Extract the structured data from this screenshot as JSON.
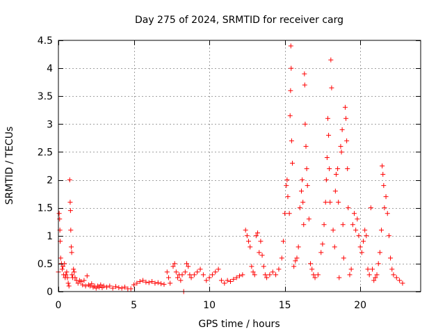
{
  "chart_data": {
    "type": "scatter",
    "title": "Day 275 of 2024, SRMTID for receiver carg",
    "xlabel": "GPS time / hours",
    "ylabel": "SRMTID / TECUs",
    "xlim": [
      0,
      24
    ],
    "ylim": [
      0,
      4.5
    ],
    "grid": true,
    "marker": "+",
    "x_ticks": [
      0,
      5,
      10,
      15,
      20
    ],
    "x_tick_labels": [
      "0",
      "5",
      "10",
      "15",
      "20"
    ],
    "y_ticks": [
      0,
      0.5,
      1,
      1.5,
      2,
      2.5,
      3,
      3.5,
      4,
      4.5
    ],
    "y_tick_labels": [
      "0",
      "0.5",
      "1",
      "1.5",
      "2",
      "2.5",
      "3",
      "3.5",
      "4",
      "4.5"
    ],
    "series": [
      {
        "name": "SRMTID",
        "color": "#ff0000",
        "points": [
          [
            0.0,
            0.35
          ],
          [
            0.05,
            1.4
          ],
          [
            0.08,
            1.3
          ],
          [
            0.1,
            1.1
          ],
          [
            0.12,
            0.9
          ],
          [
            0.15,
            0.6
          ],
          [
            0.2,
            0.5
          ],
          [
            0.25,
            0.4
          ],
          [
            0.3,
            0.45
          ],
          [
            0.35,
            0.3
          ],
          [
            0.4,
            0.5
          ],
          [
            0.45,
            0.25
          ],
          [
            0.5,
            0.3
          ],
          [
            0.55,
            0.35
          ],
          [
            0.6,
            0.25
          ],
          [
            0.65,
            0.15
          ],
          [
            0.7,
            0.1
          ],
          [
            0.75,
            2.0
          ],
          [
            0.78,
            1.6
          ],
          [
            0.8,
            1.45
          ],
          [
            0.82,
            1.1
          ],
          [
            0.85,
            0.8
          ],
          [
            0.88,
            0.7
          ],
          [
            0.9,
            0.3
          ],
          [
            0.95,
            0.25
          ],
          [
            1.0,
            0.4
          ],
          [
            1.05,
            0.35
          ],
          [
            1.1,
            0.25
          ],
          [
            1.2,
            0.2
          ],
          [
            1.3,
            0.15
          ],
          [
            1.4,
            0.2
          ],
          [
            1.5,
            0.18
          ],
          [
            1.6,
            0.12
          ],
          [
            1.7,
            0.2
          ],
          [
            1.8,
            0.1
          ],
          [
            1.9,
            0.28
          ],
          [
            2.0,
            0.12
          ],
          [
            2.1,
            0.1
          ],
          [
            2.2,
            0.14
          ],
          [
            2.3,
            0.08
          ],
          [
            2.4,
            0.1
          ],
          [
            2.5,
            0.06
          ],
          [
            2.6,
            0.1
          ],
          [
            2.7,
            0.08
          ],
          [
            2.8,
            0.12
          ],
          [
            2.9,
            0.07
          ],
          [
            3.0,
            0.1
          ],
          [
            3.2,
            0.08
          ],
          [
            3.4,
            0.1
          ],
          [
            3.6,
            0.06
          ],
          [
            3.8,
            0.09
          ],
          [
            4.0,
            0.07
          ],
          [
            4.2,
            0.06
          ],
          [
            4.4,
            0.08
          ],
          [
            4.6,
            0.05
          ],
          [
            4.8,
            0.05
          ],
          [
            5.0,
            0.12
          ],
          [
            5.2,
            0.15
          ],
          [
            5.4,
            0.18
          ],
          [
            5.6,
            0.2
          ],
          [
            5.8,
            0.17
          ],
          [
            6.0,
            0.16
          ],
          [
            6.2,
            0.18
          ],
          [
            6.4,
            0.15
          ],
          [
            6.6,
            0.16
          ],
          [
            6.8,
            0.14
          ],
          [
            7.0,
            0.13
          ],
          [
            7.2,
            0.35
          ],
          [
            7.3,
            0.25
          ],
          [
            7.4,
            0.15
          ],
          [
            7.6,
            0.45
          ],
          [
            7.7,
            0.5
          ],
          [
            7.8,
            0.35
          ],
          [
            7.9,
            0.25
          ],
          [
            8.0,
            0.3
          ],
          [
            8.1,
            0.2
          ],
          [
            8.2,
            0.3
          ],
          [
            8.3,
            0.0
          ],
          [
            8.4,
            0.35
          ],
          [
            8.5,
            0.5
          ],
          [
            8.6,
            0.45
          ],
          [
            8.7,
            0.3
          ],
          [
            8.8,
            0.25
          ],
          [
            9.0,
            0.3
          ],
          [
            9.2,
            0.35
          ],
          [
            9.4,
            0.4
          ],
          [
            9.6,
            0.3
          ],
          [
            9.8,
            0.2
          ],
          [
            10.0,
            0.25
          ],
          [
            10.2,
            0.3
          ],
          [
            10.4,
            0.35
          ],
          [
            10.6,
            0.4
          ],
          [
            10.8,
            0.2
          ],
          [
            11.0,
            0.15
          ],
          [
            11.2,
            0.2
          ],
          [
            11.4,
            0.18
          ],
          [
            11.6,
            0.22
          ],
          [
            11.8,
            0.25
          ],
          [
            12.0,
            0.28
          ],
          [
            12.2,
            0.3
          ],
          [
            12.4,
            1.1
          ],
          [
            12.5,
            1.0
          ],
          [
            12.6,
            0.9
          ],
          [
            12.7,
            0.8
          ],
          [
            12.8,
            0.45
          ],
          [
            12.9,
            0.35
          ],
          [
            13.0,
            0.3
          ],
          [
            13.1,
            1.0
          ],
          [
            13.2,
            1.05
          ],
          [
            13.3,
            0.7
          ],
          [
            13.4,
            0.9
          ],
          [
            13.5,
            0.65
          ],
          [
            13.6,
            0.45
          ],
          [
            13.7,
            0.3
          ],
          [
            13.8,
            0.25
          ],
          [
            14.0,
            0.3
          ],
          [
            14.2,
            0.35
          ],
          [
            14.4,
            0.3
          ],
          [
            14.6,
            0.4
          ],
          [
            14.8,
            0.6
          ],
          [
            14.9,
            0.9
          ],
          [
            15.0,
            1.4
          ],
          [
            15.1,
            1.9
          ],
          [
            15.15,
            2.0
          ],
          [
            15.2,
            1.7
          ],
          [
            15.3,
            1.4
          ],
          [
            15.35,
            3.15
          ],
          [
            15.38,
            3.6
          ],
          [
            15.4,
            4.4
          ],
          [
            15.42,
            4.0
          ],
          [
            15.45,
            2.7
          ],
          [
            15.5,
            2.3
          ],
          [
            15.6,
            0.45
          ],
          [
            15.7,
            0.55
          ],
          [
            15.8,
            0.6
          ],
          [
            15.9,
            0.8
          ],
          [
            16.0,
            1.5
          ],
          [
            16.1,
            1.8
          ],
          [
            16.15,
            2.0
          ],
          [
            16.2,
            1.6
          ],
          [
            16.25,
            1.2
          ],
          [
            16.3,
            3.9
          ],
          [
            16.32,
            3.7
          ],
          [
            16.35,
            3.0
          ],
          [
            16.4,
            2.6
          ],
          [
            16.45,
            2.2
          ],
          [
            16.5,
            1.9
          ],
          [
            16.6,
            1.3
          ],
          [
            16.7,
            0.5
          ],
          [
            16.8,
            0.4
          ],
          [
            16.9,
            0.3
          ],
          [
            17.0,
            0.25
          ],
          [
            17.2,
            0.3
          ],
          [
            17.4,
            0.7
          ],
          [
            17.5,
            0.85
          ],
          [
            17.6,
            1.2
          ],
          [
            17.7,
            1.6
          ],
          [
            17.75,
            2.0
          ],
          [
            17.8,
            2.4
          ],
          [
            17.85,
            3.1
          ],
          [
            17.9,
            2.8
          ],
          [
            17.95,
            2.2
          ],
          [
            18.0,
            1.6
          ],
          [
            18.05,
            4.15
          ],
          [
            18.1,
            3.65
          ],
          [
            18.2,
            1.1
          ],
          [
            18.3,
            0.8
          ],
          [
            18.35,
            1.8
          ],
          [
            18.4,
            2.1
          ],
          [
            18.5,
            2.2
          ],
          [
            18.55,
            1.6
          ],
          [
            18.6,
            0.25
          ],
          [
            18.7,
            2.6
          ],
          [
            18.75,
            2.5
          ],
          [
            18.8,
            2.9
          ],
          [
            18.85,
            1.2
          ],
          [
            18.9,
            0.6
          ],
          [
            19.0,
            3.3
          ],
          [
            19.05,
            3.1
          ],
          [
            19.1,
            2.7
          ],
          [
            19.15,
            2.2
          ],
          [
            19.2,
            1.5
          ],
          [
            19.3,
            0.3
          ],
          [
            19.4,
            0.4
          ],
          [
            19.5,
            1.2
          ],
          [
            19.6,
            1.4
          ],
          [
            19.7,
            1.1
          ],
          [
            19.8,
            1.3
          ],
          [
            19.9,
            1.0
          ],
          [
            20.0,
            0.8
          ],
          [
            20.1,
            0.7
          ],
          [
            20.2,
            0.9
          ],
          [
            20.3,
            1.1
          ],
          [
            20.4,
            1.0
          ],
          [
            20.5,
            0.4
          ],
          [
            20.6,
            0.3
          ],
          [
            20.7,
            1.5
          ],
          [
            20.8,
            0.4
          ],
          [
            20.9,
            0.2
          ],
          [
            21.0,
            0.25
          ],
          [
            21.1,
            0.3
          ],
          [
            21.2,
            0.5
          ],
          [
            21.3,
            0.7
          ],
          [
            21.4,
            1.1
          ],
          [
            21.45,
            2.25
          ],
          [
            21.5,
            2.1
          ],
          [
            21.55,
            1.9
          ],
          [
            21.6,
            1.5
          ],
          [
            21.7,
            1.7
          ],
          [
            21.8,
            1.4
          ],
          [
            21.9,
            1.0
          ],
          [
            22.0,
            0.6
          ],
          [
            22.1,
            0.4
          ],
          [
            22.2,
            0.3
          ],
          [
            22.4,
            0.25
          ],
          [
            22.6,
            0.2
          ],
          [
            22.8,
            0.15
          ]
        ]
      }
    ]
  }
}
